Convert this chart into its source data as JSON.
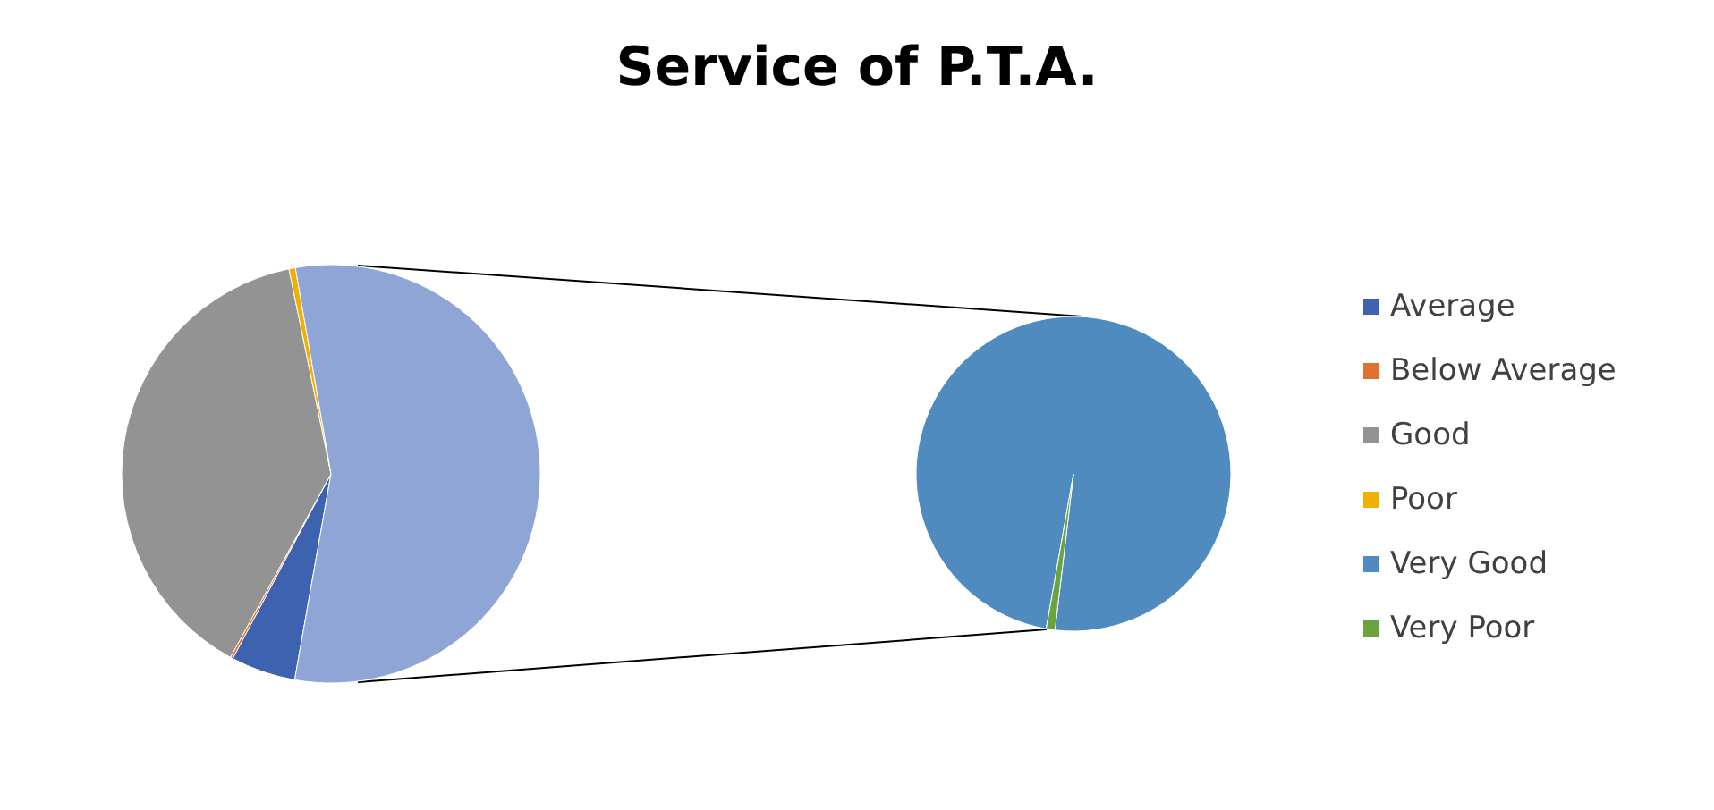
{
  "chart_data": [
    {
      "type": "pie",
      "title": "Service of P.T.A.",
      "categories": [
        "Average",
        "Below Average",
        "Good",
        "Poor",
        null
      ],
      "values": [
        5,
        0.2,
        38.8,
        0.5,
        55.5
      ],
      "colors": [
        "#3c62b0",
        "#e2702e",
        "#939393",
        "#f0b000",
        "#8fa5d6"
      ],
      "legend": "right"
    },
    {
      "type": "pie",
      "categories": [
        "Very Good",
        "Very Poor"
      ],
      "values": [
        99.1,
        0.9
      ],
      "colors": [
        "#4f8bbf",
        "#6aa43f"
      ],
      "legend": "right"
    }
  ]
}
